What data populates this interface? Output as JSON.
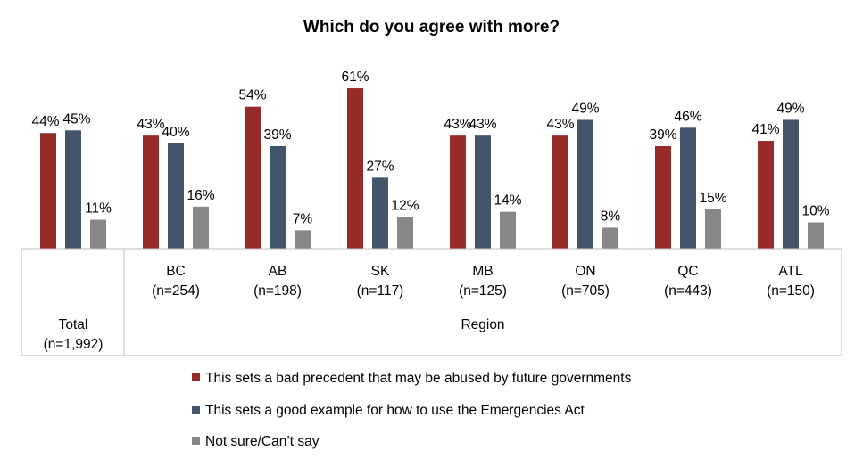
{
  "chart_data": {
    "type": "bar",
    "title": "Which do you agree with more?",
    "ylim": [
      0,
      70
    ],
    "grid": false,
    "legend_position": "bottom",
    "groups": [
      {
        "label": "Total",
        "n": "(n=1,992)"
      },
      {
        "label": "BC",
        "n": "(n=254)"
      },
      {
        "label": "AB",
        "n": "(n=198)"
      },
      {
        "label": "SK",
        "n": "(n=117)"
      },
      {
        "label": "MB",
        "n": "(n=125)"
      },
      {
        "label": "ON",
        "n": "(n=705)"
      },
      {
        "label": "QC",
        "n": "(n=443)"
      },
      {
        "label": "ATL",
        "n": "(n=150)"
      }
    ],
    "region_label": "Region",
    "series": [
      {
        "name": "This sets a bad precedent that may be abused by future governments",
        "color": "#962B27",
        "values": [
          44,
          43,
          54,
          61,
          43,
          43,
          39,
          41
        ],
        "labels": [
          "44%",
          "43%",
          "54%",
          "61%",
          "43%",
          "43%",
          "39%",
          "41%"
        ]
      },
      {
        "name": "This sets a good example for how to use the Emergencies Act",
        "color": "#44546A",
        "values": [
          45,
          40,
          39,
          27,
          43,
          49,
          46,
          49
        ],
        "labels": [
          "45%",
          "40%",
          "39%",
          "27%",
          "43%",
          "49%",
          "46%",
          "49%"
        ]
      },
      {
        "name": "Not sure/Can’t say",
        "color": "#878787",
        "values": [
          11,
          16,
          7,
          12,
          14,
          8,
          15,
          10
        ],
        "labels": [
          "11%",
          "16%",
          "7%",
          "12%",
          "14%",
          "8%",
          "15%",
          "10%"
        ]
      }
    ]
  }
}
